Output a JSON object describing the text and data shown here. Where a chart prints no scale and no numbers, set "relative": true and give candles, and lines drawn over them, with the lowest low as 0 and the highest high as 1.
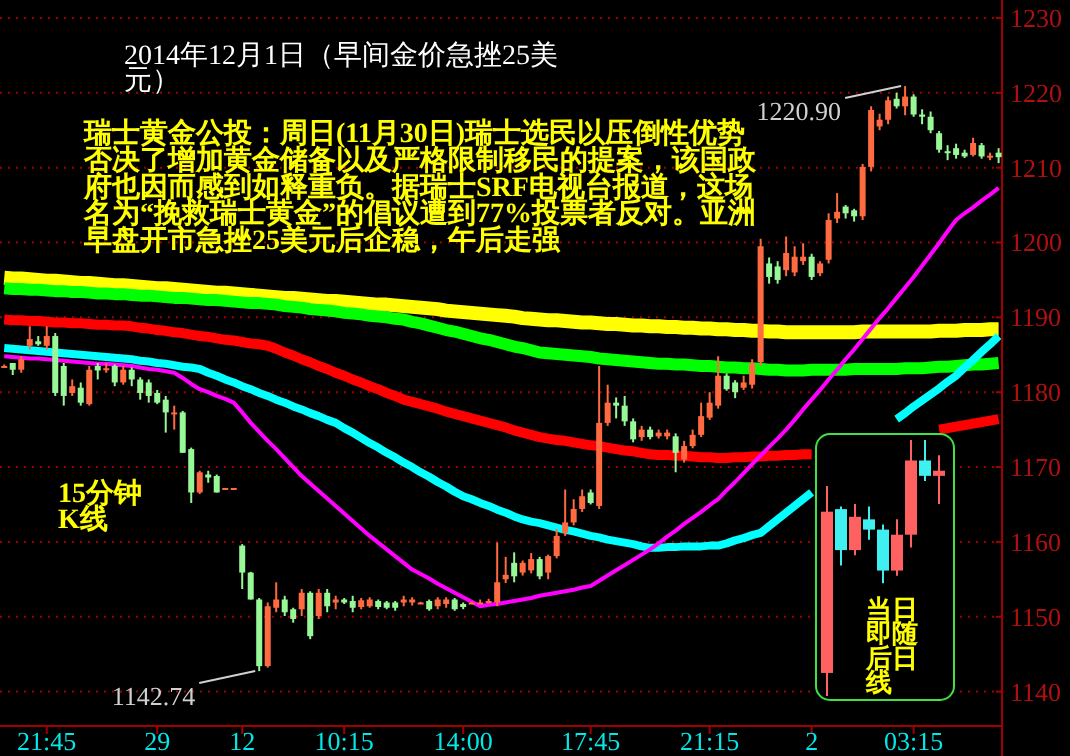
{
  "chart_data": [
    {
      "type": "candlestick",
      "title": "2014年12月1日（早间金价急挫25美元）",
      "categories": [
        null,
        null,
        null,
        null,
        null,
        "21:45",
        null,
        null,
        null,
        null,
        null,
        null,
        null,
        null,
        null,
        null,
        null,
        null,
        "29",
        null,
        null,
        null,
        null,
        null,
        null,
        null,
        null,
        null,
        "12",
        null,
        null,
        null,
        null,
        null,
        null,
        null,
        null,
        null,
        null,
        null,
        "10:15",
        null,
        null,
        null,
        null,
        null,
        null,
        null,
        null,
        null,
        null,
        null,
        null,
        null,
        "14:00",
        null,
        null,
        null,
        null,
        null,
        null,
        null,
        null,
        null,
        null,
        null,
        null,
        null,
        null,
        "17:45",
        null,
        null,
        null,
        null,
        null,
        null,
        null,
        null,
        null,
        null,
        null,
        null,
        null,
        "21:15",
        null,
        null,
        null,
        null,
        null,
        null,
        null,
        null,
        null,
        null,
        null,
        "2",
        null,
        null,
        null,
        null,
        null,
        null,
        null,
        null,
        null,
        null,
        null,
        "03:15",
        null,
        null,
        null,
        null,
        null,
        null,
        null,
        null,
        null,
        null
      ],
      "ohlc": [
        [
          1183.5,
          1183.7,
          1183.3,
          1183.5
        ],
        [
          1183.9,
          1183.9,
          1182.3,
          1183.0
        ],
        [
          1183.0,
          1184.8,
          1182.6,
          1184.4
        ],
        [
          1186.2,
          1188.8,
          1185.7,
          1187.1
        ],
        [
          1186.8,
          1187.5,
          1186.2,
          1186.4
        ],
        [
          1186.2,
          1188.8,
          1185.7,
          1187.5
        ],
        [
          1187.5,
          1187.9,
          1179.5,
          1179.9
        ],
        [
          1183.5,
          1183.9,
          1178.2,
          1179.5
        ],
        [
          1179.9,
          1181.7,
          1179.5,
          1180.8
        ],
        [
          1180.6,
          1181.3,
          1178.2,
          1178.6
        ],
        [
          1178.4,
          1183.5,
          1178.2,
          1183.0
        ],
        [
          1183.5,
          1183.9,
          1181.7,
          1182.9
        ],
        [
          1183.0,
          1183.9,
          1182.6,
          1183.2
        ],
        [
          1183.5,
          1183.7,
          1180.8,
          1181.3
        ],
        [
          1181.3,
          1183.5,
          1181.0,
          1183.0
        ],
        [
          1183.0,
          1183.3,
          1180.8,
          1181.7
        ],
        [
          1181.7,
          1182.0,
          1179.0,
          1179.9
        ],
        [
          1181.3,
          1181.7,
          1178.6,
          1179.5
        ],
        [
          1179.9,
          1180.3,
          1178.4,
          1178.6
        ],
        [
          1179.0,
          1179.5,
          1174.6,
          1177.3
        ],
        [
          1177.1,
          1178.2,
          1175.0,
          1177.3
        ],
        [
          1177.3,
          1177.5,
          1171.9,
          1171.9
        ],
        [
          1172.4,
          1172.6,
          1165.2,
          1166.6
        ],
        [
          1166.6,
          1169.5,
          1166.4,
          1169.3
        ],
        [
          1169.0,
          1169.5,
          1167.9,
          1168.6
        ],
        [
          1168.8,
          1169.0,
          1166.6,
          1166.6
        ],
        [
          1167.2,
          1167.2,
          1167.2,
          1167.2
        ],
        [
          1167.2,
          1167.2,
          1167.2,
          1167.2
        ],
        [
          1159.5,
          1159.7,
          1153.7,
          1155.9
        ],
        [
          1155.9,
          1156.0,
          1152.3,
          1152.3
        ],
        [
          1152.3,
          1152.5,
          1142.74,
          1143.4
        ],
        [
          1143.4,
          1151.9,
          1143.2,
          1151.4
        ],
        [
          1151.2,
          1154.6,
          1150.6,
          1152.3
        ],
        [
          1152.3,
          1152.8,
          1150.1,
          1150.6
        ],
        [
          1151.0,
          1151.2,
          1149.2,
          1149.7
        ],
        [
          1151.0,
          1153.7,
          1150.1,
          1153.2
        ],
        [
          1153.2,
          1153.4,
          1147.0,
          1147.4
        ],
        [
          1150.1,
          1153.7,
          1149.7,
          1153.2
        ],
        [
          1153.2,
          1153.7,
          1150.6,
          1151.4
        ],
        [
          1151.9,
          1152.8,
          1151.0,
          1152.3
        ],
        [
          1152.3,
          1152.5,
          1151.7,
          1151.9
        ],
        [
          1152.1,
          1152.8,
          1150.6,
          1151.2
        ],
        [
          1151.3,
          1152.5,
          1151.0,
          1152.2
        ],
        [
          1151.4,
          1152.6,
          1151.2,
          1152.3
        ],
        [
          1152.1,
          1152.3,
          1151.0,
          1151.3
        ],
        [
          1151.9,
          1152.1,
          1151.0,
          1151.2
        ],
        [
          1151.9,
          1152.1,
          1150.8,
          1151.2
        ],
        [
          1151.9,
          1152.8,
          1151.4,
          1152.3
        ],
        [
          1151.9,
          1152.6,
          1151.5,
          1152.3
        ],
        [
          1151.9,
          1152.0,
          1151.8,
          1151.9
        ],
        [
          1152.1,
          1152.3,
          1150.8,
          1151.0
        ],
        [
          1151.4,
          1152.6,
          1151.0,
          1152.3
        ],
        [
          1151.7,
          1152.6,
          1151.2,
          1152.3
        ],
        [
          1152.3,
          1152.5,
          1150.8,
          1151.0
        ],
        [
          1151.7,
          1151.9,
          1151.0,
          1151.3
        ],
        [
          1151.9,
          1152.0,
          1151.8,
          1151.9
        ],
        [
          1151.9,
          1152.3,
          1151.7,
          1151.9
        ],
        [
          1152.0,
          1152.4,
          1151.8,
          1152.1
        ],
        [
          1151.9,
          1159.9,
          1151.4,
          1154.6
        ],
        [
          1155.0,
          1158.0,
          1154.5,
          1155.6
        ],
        [
          1157.2,
          1158.6,
          1154.6,
          1155.4
        ],
        [
          1155.9,
          1157.5,
          1155.5,
          1157.2
        ],
        [
          1156.2,
          1158.5,
          1155.8,
          1157.7
        ],
        [
          1157.7,
          1158.0,
          1155.0,
          1155.4
        ],
        [
          1155.9,
          1158.3,
          1155.0,
          1158.1
        ],
        [
          1158.1,
          1161.7,
          1157.8,
          1160.8
        ],
        [
          1161.2,
          1167.0,
          1160.8,
          1162.6
        ],
        [
          1162.6,
          1165.7,
          1162.2,
          1164.4
        ],
        [
          1164.4,
          1167.0,
          1164.0,
          1166.1
        ],
        [
          1166.6,
          1167.0,
          1165.0,
          1165.2
        ],
        [
          1164.8,
          1183.5,
          1164.4,
          1175.9
        ],
        [
          1175.9,
          1181.0,
          1175.5,
          1178.6
        ],
        [
          1178.6,
          1179.3,
          1176.5,
          1178.2
        ],
        [
          1178.2,
          1179.5,
          1175.5,
          1176.1
        ],
        [
          1176.1,
          1176.5,
          1173.3,
          1173.7
        ],
        [
          1174.0,
          1175.5,
          1173.5,
          1175.0
        ],
        [
          1175.0,
          1175.4,
          1173.7,
          1174.0
        ],
        [
          1174.1,
          1175.0,
          1173.8,
          1174.6
        ],
        [
          1174.1,
          1175.0,
          1173.7,
          1174.6
        ],
        [
          1174.1,
          1174.5,
          1169.3,
          1171.9
        ],
        [
          1171.0,
          1173.5,
          1170.6,
          1172.8
        ],
        [
          1172.8,
          1175.0,
          1172.5,
          1174.3
        ],
        [
          1174.3,
          1178.6,
          1174.0,
          1176.8
        ],
        [
          1176.6,
          1180.0,
          1176.3,
          1178.6
        ],
        [
          1178.2,
          1184.8,
          1177.8,
          1182.2
        ],
        [
          1182.2,
          1182.5,
          1180.2,
          1180.4
        ],
        [
          1181.3,
          1181.6,
          1179.2,
          1180.0
        ],
        [
          1180.6,
          1182.2,
          1180.3,
          1181.3
        ],
        [
          1181.0,
          1184.4,
          1180.5,
          1183.9
        ],
        [
          1184.0,
          1200.5,
          1183.5,
          1199.5
        ],
        [
          1197.2,
          1198.0,
          1194.5,
          1195.4
        ],
        [
          1196.8,
          1197.5,
          1194.5,
          1195.0
        ],
        [
          1196.3,
          1200.8,
          1195.5,
          1198.6
        ],
        [
          1196.0,
          1199.5,
          1195.5,
          1198.1
        ],
        [
          1197.5,
          1199.9,
          1197.0,
          1198.1
        ],
        [
          1198.1,
          1198.5,
          1195.0,
          1195.4
        ],
        [
          1195.9,
          1197.5,
          1195.5,
          1197.2
        ],
        [
          1197.7,
          1203.9,
          1197.2,
          1203.0
        ],
        [
          1203.2,
          1206.6,
          1202.6,
          1204.1
        ],
        [
          1204.8,
          1205.0,
          1203.2,
          1203.9
        ],
        [
          1204.3,
          1204.5,
          1202.8,
          1203.5
        ],
        [
          1203.5,
          1210.5,
          1203.0,
          1210.1
        ],
        [
          1210.1,
          1218.2,
          1209.5,
          1217.7
        ],
        [
          1215.5,
          1217.2,
          1215.0,
          1216.4
        ],
        [
          1216.4,
          1219.5,
          1215.8,
          1219.0
        ],
        [
          1219.2,
          1220.0,
          1217.9,
          1218.2
        ],
        [
          1218.2,
          1220.9,
          1217.0,
          1219.5
        ],
        [
          1219.5,
          1219.8,
          1216.8,
          1217.1
        ],
        [
          1217.1,
          1217.8,
          1215.8,
          1216.8
        ],
        [
          1216.8,
          1217.5,
          1214.6,
          1215.0
        ],
        [
          1214.6,
          1214.9,
          1212.0,
          1212.4
        ],
        [
          1212.2,
          1213.0,
          1211.0,
          1212.1
        ],
        [
          1212.6,
          1213.2,
          1211.2,
          1211.7
        ],
        [
          1212.0,
          1212.4,
          1211.3,
          1211.5
        ],
        [
          1211.7,
          1214.0,
          1211.5,
          1213.3
        ],
        [
          1213.0,
          1213.3,
          1211.2,
          1211.5
        ],
        [
          1211.5,
          1212.0,
          1211.0,
          1211.6
        ],
        [
          1212.0,
          1212.6,
          1210.6,
          1211.4
        ]
      ],
      "colors": [
        "#ff6a40",
        "#98f898",
        "#ff6a40",
        "#ff6a40",
        "#98f898",
        "#ff6a40",
        "#98f898",
        "#98f898",
        "#ff6a40",
        "#98f898",
        "#ff6a40",
        "#98f898",
        "#ff6a40",
        "#98f898",
        "#ff6a40",
        "#98f898",
        "#98f898",
        "#98f898",
        "#98f898",
        "#98f898",
        "#ff6a40",
        "#98f898",
        "#98f898",
        "#ff6a40",
        "#98f898",
        "#98f898",
        "#ff6a40",
        "#ff6a40",
        "#98f898",
        "#98f898",
        "#98f898",
        "#ff6a40",
        "#ff6a40",
        "#98f898",
        "#98f898",
        "#ff6a40",
        "#98f898",
        "#ff6a40",
        "#98f898",
        "#ff6a40",
        "#98f898",
        "#98f898",
        "#ff6a40",
        "#ff6a40",
        "#98f898",
        "#98f898",
        "#98f898",
        "#ff6a40",
        "#ff6a40",
        "#ff6a40",
        "#98f898",
        "#ff6a40",
        "#ff6a40",
        "#98f898",
        "#98f898",
        "#ff6a40",
        "#ff6a40",
        "#ff6a40",
        "#ff6a40",
        "#ff6a40",
        "#98f898",
        "#ff6a40",
        "#ff6a40",
        "#98f898",
        "#ff6a40",
        "#ff6a40",
        "#ff6a40",
        "#ff6a40",
        "#ff6a40",
        "#98f898",
        "#ff6a40",
        "#ff6a40",
        "#98f898",
        "#98f898",
        "#98f898",
        "#ff6a40",
        "#98f898",
        "#ff6a40",
        "#ff6a40",
        "#98f898",
        "#ff6a40",
        "#ff6a40",
        "#ff6a40",
        "#ff6a40",
        "#ff6a40",
        "#98f898",
        "#98f898",
        "#ff6a40",
        "#ff6a40",
        "#ff6a40",
        "#98f898",
        "#98f898",
        "#ff6a40",
        "#ff6a40",
        "#ff6a40",
        "#98f898",
        "#ff6a40",
        "#ff6a40",
        "#ff6a40",
        "#98f898",
        "#98f898",
        "#ff6a40",
        "#ff6a40",
        "#ff6a40",
        "#ff6a40",
        "#98f898",
        "#ff6a40",
        "#98f898",
        "#98f898",
        "#98f898",
        "#98f898",
        "#98f898",
        "#98f898",
        "#98f898",
        "#ff6a40",
        "#98f898",
        "#ff6a40",
        "#98f898"
      ],
      "series": [
        {
          "type": "line",
          "color": "#ffff00",
          "values": [
            1195.3,
            1195.2,
            1195.2,
            1195.1,
            1195.0,
            1194.9,
            1194.9,
            1194.8,
            1194.7,
            1194.6,
            1194.6,
            1194.5,
            1194.4,
            1194.3,
            1194.3,
            1194.2,
            1194.1,
            1194.0,
            1193.9,
            1193.9,
            1193.8,
            1193.7,
            1193.6,
            1193.5,
            1193.4,
            1193.3,
            1193.3,
            1193.2,
            1193.1,
            1193.0,
            1192.9,
            1192.8,
            1192.7,
            1192.6,
            1192.6,
            1192.5,
            1192.4,
            1192.3,
            1192.2,
            1192.2,
            1192.1,
            1192.0,
            1191.9,
            1191.8,
            1191.7,
            1191.7,
            1191.6,
            1191.5,
            1191.4,
            1191.3,
            1191.2,
            1191.1,
            1190.9,
            1190.8,
            1190.7,
            1190.6,
            1190.5,
            1190.4,
            1190.3,
            1190.2,
            1190.1,
            1189.9,
            1189.8,
            1189.7,
            1189.6,
            1189.6,
            1189.5,
            1189.4,
            1189.3,
            1189.3,
            1189.2,
            1189.1,
            1189.1,
            1189.0,
            1188.9,
            1188.9,
            1188.8,
            1188.8,
            1188.7,
            1188.7,
            1188.6,
            1188.6,
            1188.5,
            1188.5,
            1188.4,
            1188.4,
            1188.3,
            1188.3,
            1188.2,
            1188.2,
            1188.1,
            1188.1,
            1188.0,
            1188.0,
            1188.0,
            1188.0,
            1188.0,
            1188.0,
            1188.0,
            1188.0,
            1188.0,
            1188.1,
            1188.1,
            1188.1,
            1188.1,
            1188.1,
            1188.1,
            1188.1,
            1188.1,
            1188.1,
            1188.2,
            1188.2,
            1188.2,
            1188.3,
            1188.3,
            1188.3,
            1188.4,
            1188.4
          ]
        },
        {
          "type": "line",
          "color": "#00ff00",
          "values": [
            1193.9,
            1193.8,
            1193.8,
            1193.7,
            1193.7,
            1193.6,
            1193.5,
            1193.5,
            1193.4,
            1193.4,
            1193.3,
            1193.2,
            1193.2,
            1193.1,
            1193.1,
            1193.0,
            1192.9,
            1192.9,
            1192.8,
            1192.7,
            1192.6,
            1192.6,
            1192.5,
            1192.4,
            1192.3,
            1192.3,
            1192.2,
            1192.1,
            1192.0,
            1191.9,
            1191.9,
            1191.8,
            1191.7,
            1191.5,
            1191.4,
            1191.3,
            1191.1,
            1191.0,
            1190.9,
            1190.8,
            1190.6,
            1190.5,
            1190.4,
            1190.2,
            1190.1,
            1190.0,
            1189.8,
            1189.7,
            1189.4,
            1189.2,
            1188.9,
            1188.6,
            1188.3,
            1188.1,
            1187.8,
            1187.5,
            1187.2,
            1187.0,
            1186.7,
            1186.4,
            1186.1,
            1185.9,
            1185.6,
            1185.3,
            1185.2,
            1185.1,
            1185.0,
            1184.9,
            1184.8,
            1184.7,
            1184.5,
            1184.4,
            1184.3,
            1184.2,
            1184.1,
            1184.0,
            1183.9,
            1183.8,
            1183.8,
            1183.7,
            1183.7,
            1183.6,
            1183.5,
            1183.5,
            1183.4,
            1183.3,
            1183.3,
            1183.2,
            1183.2,
            1183.1,
            1183.0,
            1183.0,
            1182.9,
            1182.9,
            1182.9,
            1183.0,
            1183.0,
            1183.0,
            1183.0,
            1183.0,
            1183.1,
            1183.1,
            1183.1,
            1183.1,
            1183.1,
            1183.1,
            1183.2,
            1183.2,
            1183.2,
            1183.3,
            1183.4,
            1183.4,
            1183.5,
            1183.6,
            1183.7,
            1183.7,
            1183.8,
            1183.9
          ]
        },
        {
          "type": "line",
          "color": "#ff0000",
          "values": [
            1189.7,
            1189.6,
            1189.6,
            1189.5,
            1189.5,
            1189.4,
            1189.3,
            1189.3,
            1189.2,
            1189.2,
            1189.1,
            1189.0,
            1189.0,
            1188.9,
            1188.9,
            1188.8,
            1188.6,
            1188.5,
            1188.3,
            1188.2,
            1188.0,
            1187.9,
            1187.7,
            1187.5,
            1187.4,
            1187.2,
            1187.0,
            1186.9,
            1186.7,
            1186.5,
            1186.4,
            1186.2,
            1185.8,
            1185.3,
            1184.9,
            1184.4,
            1184.0,
            1183.5,
            1183.1,
            1182.6,
            1182.2,
            1181.7,
            1181.3,
            1180.8,
            1180.4,
            1179.9,
            1179.5,
            1179.0,
            1178.7,
            1178.4,
            1178.1,
            1177.8,
            1177.4,
            1177.1,
            1176.8,
            1176.5,
            1176.2,
            1175.9,
            1175.6,
            1175.3,
            1174.9,
            1174.6,
            1174.3,
            1174.0,
            1173.8,
            1173.6,
            1173.5,
            1173.3,
            1173.1,
            1172.9,
            1172.8,
            1172.6,
            1172.4,
            1172.2,
            1172.1,
            1171.9,
            1171.7,
            1171.6,
            1171.6,
            1171.5,
            1171.5,
            1171.4,
            1171.3,
            1171.3,
            1171.2,
            1171.2,
            1171.3,
            1171.3,
            1171.4,
            1171.4,
            1171.5,
            1171.5,
            1171.6,
            1171.6,
            1171.7,
            1171.7,
            null,
            null,
            null,
            null,
            null,
            null,
            null,
            null,
            null,
            null,
            null,
            null,
            null,
            null,
            1175.0,
            1175.2,
            1175.4,
            1175.6,
            1175.8,
            1176.0,
            1176.2,
            1176.4
          ]
        },
        {
          "type": "line",
          "color": "#00ffff",
          "values": [
            1185.9,
            1185.8,
            1185.7,
            1185.6,
            1185.5,
            1185.4,
            1185.3,
            1185.2,
            1185.1,
            1185.0,
            1184.9,
            1184.8,
            1184.7,
            1184.6,
            1184.5,
            1184.4,
            1184.2,
            1184.1,
            1183.9,
            1183.8,
            1183.6,
            1183.4,
            1183.3,
            1183.1,
            1182.6,
            1182.2,
            1181.7,
            1181.3,
            1180.8,
            1180.4,
            1179.9,
            1179.5,
            1179.0,
            1178.6,
            1178.1,
            1177.7,
            1177.2,
            1176.8,
            1176.3,
            1175.9,
            1175.2,
            1174.6,
            1173.9,
            1173.2,
            1172.6,
            1171.9,
            1171.3,
            1170.6,
            1170.0,
            1169.3,
            1168.7,
            1168.0,
            1167.4,
            1166.7,
            1166.1,
            1165.7,
            1165.2,
            1164.8,
            1164.3,
            1163.9,
            1163.4,
            1163.0,
            1162.7,
            1162.5,
            1162.2,
            1161.9,
            1161.6,
            1161.4,
            1161.1,
            1160.8,
            1160.6,
            1160.3,
            1160.1,
            1159.9,
            1159.7,
            1159.4,
            1159.2,
            1159.2,
            1159.3,
            1159.3,
            1159.4,
            1159.4,
            1159.4,
            1159.5,
            1159.5,
            1159.8,
            1160.2,
            1160.5,
            1160.9,
            1161.2,
            1162.1,
            1163.0,
            1163.9,
            1164.8,
            1165.7,
            1166.6,
            null,
            null,
            null,
            null,
            null,
            null,
            null,
            null,
            null,
            1176.4,
            1177.2,
            1178.1,
            1178.9,
            1179.7,
            1180.5,
            1181.4,
            1182.2,
            1183.3,
            1184.3,
            1185.4,
            1186.4,
            1187.5
          ]
        },
        {
          "type": "line",
          "color": "#ff00ff",
          "values": [
            1184.8,
            1184.7,
            1184.6,
            1184.5,
            1184.5,
            1184.4,
            1184.3,
            1184.2,
            1184.1,
            1184.0,
            1183.9,
            1183.8,
            1183.8,
            1183.7,
            1183.6,
            1183.5,
            1183.3,
            1183.1,
            1183.0,
            1182.8,
            1182.6,
            1181.9,
            1181.1,
            1180.4,
            1180.0,
            1179.5,
            1179.1,
            1178.6,
            1177.3,
            1175.9,
            1174.7,
            1173.5,
            1172.4,
            1171.2,
            1170.0,
            1168.8,
            1167.8,
            1166.8,
            1165.8,
            1164.8,
            1163.8,
            1162.8,
            1161.8,
            1160.8,
            1159.9,
            1159.0,
            1158.1,
            1157.2,
            1156.3,
            1155.7,
            1155.1,
            1154.4,
            1153.8,
            1153.2,
            1152.6,
            1152.0,
            1151.4,
            1151.6,
            1151.7,
            1151.9,
            1152.1,
            1152.3,
            1152.5,
            1152.8,
            1153.0,
            1153.2,
            1153.4,
            1153.6,
            1153.9,
            1154.1,
            1154.8,
            1155.5,
            1156.2,
            1156.9,
            1157.6,
            1158.3,
            1159.0,
            1159.8,
            1160.7,
            1161.5,
            1162.4,
            1163.2,
            1164.0,
            1164.9,
            1165.7,
            1166.9,
            1168.0,
            1169.2,
            1170.4,
            1171.5,
            1172.7,
            1173.8,
            1175.0,
            1176.3,
            1177.7,
            1179.0,
            1180.3,
            1181.7,
            1183.0,
            1184.4,
            1185.7,
            1187.1,
            1188.5,
            1189.9,
            1191.2,
            1192.6,
            1194.0,
            1195.4,
            1196.9,
            1198.4,
            1199.9,
            1201.5,
            1203.0,
            1203.9,
            1204.7,
            1205.6,
            1206.4,
            1207.3
          ]
        }
      ],
      "ylim": [
        1135.4,
        1232.4
      ],
      "yticks": [
        1140,
        1150,
        1160,
        1170,
        1180,
        1190,
        1200,
        1210,
        1220,
        1230
      ],
      "grid": "y",
      "annotations": [
        "1220.90",
        "1142.74",
        "瑞士黄金公投：周日(11月30日)瑞士选民以压倒性优势否决了增加黄金储备以及严格限制移民的提案，该国政府也因而感到如释重负。据瑞士SRF电视台报道，这场名为“挽救瑞士黄金”的倡议遭到77%投票者反对。亚洲早盘开市急挫25美元后企稳，午后走强",
        "15分钟K线"
      ]
    },
    {
      "type": "candlestick",
      "relative": true,
      "categories": [
        null,
        null,
        null,
        null,
        null,
        null,
        null,
        null,
        null
      ],
      "ohlc": [
        [
          0.09,
          0.82,
          0,
          0.72
        ],
        [
          0.73,
          0.74,
          0.51,
          0.57
        ],
        [
          0.57,
          0.75,
          0.55,
          0.7
        ],
        [
          0.69,
          0.74,
          0.61,
          0.65
        ],
        [
          0.65,
          0.67,
          0.44,
          0.49
        ],
        [
          0.49,
          0.69,
          0.47,
          0.63
        ],
        [
          0.63,
          1,
          0.58,
          0.92
        ],
        [
          0.92,
          1,
          0.84,
          0.86
        ],
        [
          0.86,
          0.94,
          0.75,
          0.88
        ]
      ],
      "colors": [
        "#ff6060",
        "#40f0f0",
        "#ff6060",
        "#40f0f0",
        "#40f0f0",
        "#ff6060",
        "#ff6060",
        "#40f0f0",
        "#ff6060"
      ],
      "annotations": [
        "当日即随后日线"
      ]
    }
  ]
}
